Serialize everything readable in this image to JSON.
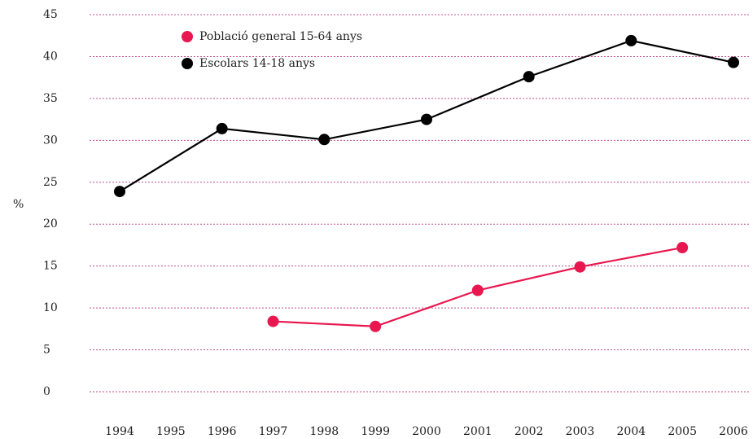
{
  "chart_data": {
    "type": "line",
    "ylabel": "%",
    "xlim": [
      1994,
      2006
    ],
    "xticks": [
      1994,
      1995,
      1996,
      1997,
      1998,
      1999,
      2000,
      2001,
      2002,
      2003,
      2004,
      2005,
      2006
    ],
    "ylim": [
      0,
      45
    ],
    "yticks": [
      0,
      5,
      10,
      15,
      20,
      25,
      30,
      35,
      40,
      45
    ],
    "grid": true,
    "legend": "top-left",
    "series": [
      {
        "name": "Població general 15-64 anys",
        "color": "#e8174f",
        "x": [
          1997,
          1999,
          2001,
          2003,
          2005
        ],
        "values": [
          8.4,
          7.8,
          12.1,
          14.9,
          17.2
        ]
      },
      {
        "name": "Escolars 14-18 anys",
        "color": "#000000",
        "x": [
          1994,
          1996,
          1998,
          2000,
          2002,
          2004,
          2006
        ],
        "values": [
          23.9,
          31.4,
          30.1,
          32.5,
          37.6,
          41.9,
          39.3
        ]
      }
    ]
  }
}
